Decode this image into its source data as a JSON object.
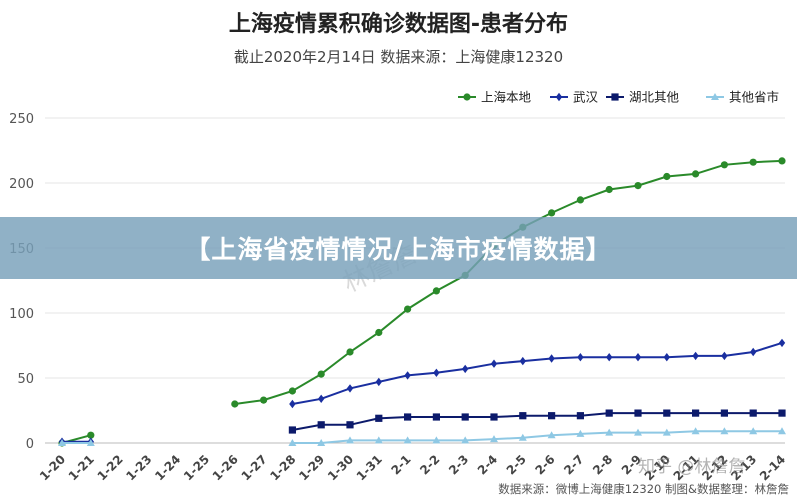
{
  "banner": "【上海省疫情情况/上海市疫情数据】",
  "source_note": "数据来源：微博上海健康12320 制图&数据整理：林詹詹",
  "watermark_center": "林詹詹",
  "watermark_corner": "知乎 @林詹詹",
  "chart_data": {
    "type": "line",
    "title": "上海疫情累积确诊数据图-患者分布",
    "subtitle": "截止2020年2月14日 数据来源：上海健康12320",
    "xlabel": "",
    "ylabel": "",
    "ylim": [
      0,
      250
    ],
    "yticks": [
      0,
      50,
      100,
      150,
      200,
      250
    ],
    "grid": true,
    "legend_position": "top-right",
    "categories": [
      "1-20",
      "1-21",
      "1-22",
      "1-23",
      "1-24",
      "1-25",
      "1-26",
      "1-27",
      "1-28",
      "1-29",
      "1-30",
      "1-31",
      "2-1",
      "2-2",
      "2-3",
      "2-4",
      "2-5",
      "2-6",
      "2-7",
      "2-8",
      "2-9",
      "2-10",
      "2-11",
      "2-12",
      "2-13",
      "2-14"
    ],
    "series": [
      {
        "name": "上海本地",
        "color": "#2a8a2a",
        "marker": "circle",
        "values": [
          0,
          6,
          null,
          null,
          null,
          null,
          30,
          33,
          40,
          53,
          70,
          85,
          103,
          117,
          129,
          152,
          166,
          177,
          187,
          195,
          198,
          205,
          207,
          214,
          216,
          217
        ]
      },
      {
        "name": "武汉",
        "color": "#1a2fa0",
        "marker": "diamond",
        "values": [
          1,
          1,
          null,
          null,
          null,
          null,
          null,
          null,
          30,
          34,
          42,
          47,
          52,
          54,
          57,
          61,
          63,
          65,
          66,
          66,
          66,
          66,
          67,
          67,
          70,
          77
        ]
      },
      {
        "name": "湖北其他",
        "color": "#0c1a6b",
        "marker": "square",
        "values": [
          null,
          null,
          null,
          null,
          null,
          null,
          null,
          null,
          10,
          14,
          14,
          19,
          20,
          20,
          20,
          20,
          21,
          21,
          21,
          23,
          23,
          23,
          23,
          23,
          23,
          23
        ]
      },
      {
        "name": "其他省市",
        "color": "#8ec8e4",
        "marker": "triangle",
        "values": [
          0,
          0,
          null,
          null,
          null,
          null,
          null,
          null,
          0,
          0,
          2,
          2,
          2,
          2,
          2,
          3,
          4,
          6,
          7,
          8,
          8,
          8,
          9,
          9,
          9,
          9
        ]
      }
    ]
  }
}
